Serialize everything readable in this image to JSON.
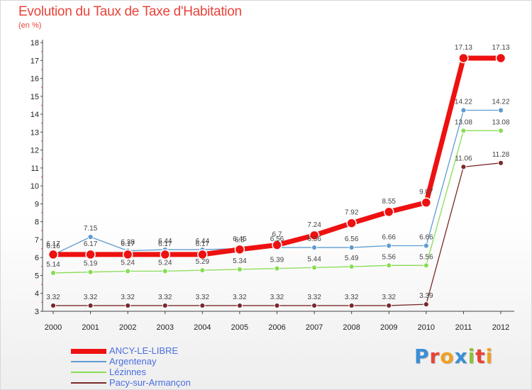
{
  "title": "Evolution du Taux de Taxe d'Habitation",
  "unit": "(en %)",
  "logo": {
    "letters": [
      "P",
      "r",
      "o",
      "x",
      "i",
      "t",
      "i"
    ],
    "colors": [
      "#3a8fd6",
      "#e8433a",
      "#f0a020",
      "#3a8fd6",
      "#8ac33a",
      "#e8433a",
      "#f0a020"
    ]
  },
  "chart_data": {
    "type": "line",
    "title": "Evolution du Taux de Taxe d'Habitation",
    "ylabel": "(en %)",
    "xlabel": "",
    "x": [
      "2000",
      "2001",
      "2002",
      "2003",
      "2004",
      "2005",
      "2006",
      "2007",
      "2008",
      "2009",
      "2010",
      "2011",
      "2012"
    ],
    "ylim": [
      3,
      18
    ],
    "yticks": [
      "3",
      "4",
      "5",
      "6",
      "7",
      "8",
      "9",
      "10",
      "11",
      "12",
      "13",
      "14",
      "15",
      "16",
      "17",
      "18"
    ],
    "grid": false,
    "legend_position": "bottom-left",
    "series": [
      {
        "name": "ANCY-LE-LIBRE",
        "color": "#ee1111",
        "values": [
          6.17,
          6.17,
          6.17,
          6.17,
          6.17,
          6.45,
          6.7,
          7.24,
          7.92,
          8.55,
          9.07,
          17.13,
          17.13
        ],
        "labels": [
          "6.17",
          "6.17",
          "6.17",
          "6.17",
          "6.17",
          "6.45",
          "6.7",
          "7.24",
          "7.92",
          "8.55",
          "9.07",
          "17.13",
          "17.13"
        ]
      },
      {
        "name": "Argentenay",
        "color": "#5f9bd0",
        "values": [
          6.16,
          7.15,
          6.38,
          6.44,
          6.44,
          6.5,
          6.56,
          6.56,
          6.56,
          6.66,
          6.66,
          14.22,
          14.22
        ],
        "labels": [
          "6.16",
          "7.15",
          "6.38",
          "6.44",
          "6.44",
          "6.5",
          "6.56",
          "6.56",
          "6.56",
          "6.66",
          "6.66",
          "14.22",
          "14.22"
        ]
      },
      {
        "name": "Lézinnes",
        "color": "#88dd55",
        "values": [
          5.14,
          5.19,
          5.24,
          5.24,
          5.29,
          5.34,
          5.39,
          5.44,
          5.49,
          5.56,
          5.56,
          13.08,
          13.08
        ],
        "labels": [
          "5.14",
          "5.19",
          "5.24",
          "5.24",
          "5.29",
          "5.34",
          "5.39",
          "5.44",
          "5.49",
          "5.56",
          "5.56",
          "13.08",
          "13.08"
        ]
      },
      {
        "name": "Pacy-sur-Armançon",
        "color": "#7a2a2a",
        "values": [
          3.32,
          3.32,
          3.32,
          3.32,
          3.32,
          3.32,
          3.32,
          3.32,
          3.32,
          3.32,
          3.39,
          11.06,
          11.28
        ],
        "labels": [
          "3.32",
          "3.32",
          "3.32",
          "3.32",
          "3.32",
          "3.32",
          "3.32",
          "3.32",
          "3.32",
          "3.32",
          "3.39",
          "11.06",
          "11.28"
        ]
      }
    ]
  }
}
